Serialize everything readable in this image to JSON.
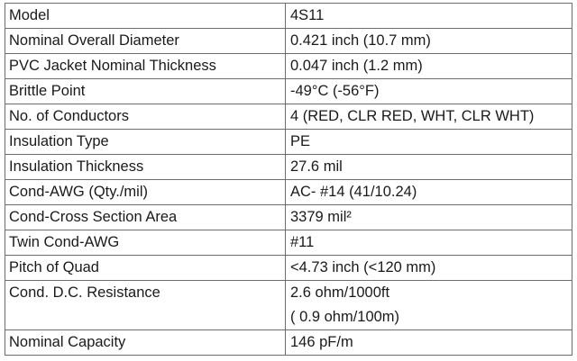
{
  "table": {
    "rows": [
      {
        "label": "Model",
        "value": [
          "4S11"
        ]
      },
      {
        "label": "Nominal Overall Diameter",
        "value": [
          "0.421 inch (10.7 mm)"
        ]
      },
      {
        "label": "PVC Jacket Nominal Thickness",
        "value": [
          "0.047 inch (1.2 mm)"
        ]
      },
      {
        "label": "Brittle Point",
        "value": [
          "-49°C (-56°F)"
        ]
      },
      {
        "label": "No. of Conductors",
        "value": [
          "4 (RED, CLR RED, WHT, CLR WHT)"
        ]
      },
      {
        "label": "Insulation Type",
        "value": [
          "PE"
        ]
      },
      {
        "label": "Insulation Thickness",
        "value": [
          "27.6 mil"
        ]
      },
      {
        "label": "Cond-AWG (Qty./mil)",
        "value": [
          "AC- #14 (41/10.24)"
        ]
      },
      {
        "label": "Cond-Cross Section Area",
        "value": [
          "3379 mil²"
        ]
      },
      {
        "label": "Twin Cond-AWG",
        "value": [
          "#11"
        ]
      },
      {
        "label": "Pitch of Quad",
        "value": [
          "<4.73 inch (<120 mm)"
        ]
      },
      {
        "label": "Cond. D.C. Resistance",
        "value": [
          "2.6 ohm/1000ft",
          "( 0.9 ohm/100m)"
        ]
      },
      {
        "label": "Nominal Capacity",
        "value": [
          "146 pF/m"
        ]
      }
    ]
  }
}
